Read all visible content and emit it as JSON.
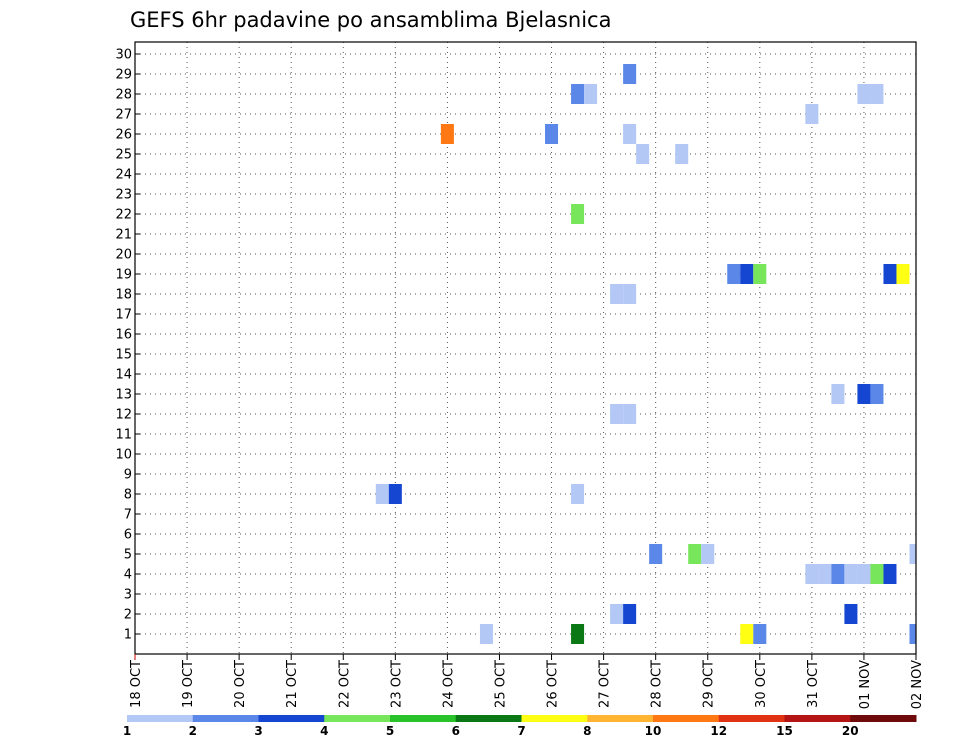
{
  "chart_data": {
    "type": "heatmap",
    "title": "GEFS 6hr padavine po ansamblima Bjelasnica",
    "xlabel": "",
    "ylabel": "",
    "y_ticks": [
      "1",
      "2",
      "3",
      "4",
      "5",
      "6",
      "7",
      "8",
      "9",
      "10",
      "11",
      "12",
      "13",
      "14",
      "15",
      "16",
      "17",
      "18",
      "19",
      "20",
      "21",
      "22",
      "23",
      "24",
      "25",
      "26",
      "27",
      "28",
      "29",
      "30"
    ],
    "ylim": [
      0,
      30
    ],
    "x_ticks": [
      "18 OCT",
      "19 OCT",
      "20 OCT",
      "21 OCT",
      "22 OCT",
      "23 OCT",
      "24 OCT",
      "25 OCT",
      "26 OCT",
      "27 OCT",
      "28 OCT",
      "29 OCT",
      "30 OCT",
      "31 OCT",
      "01 NOV",
      "02 NOV"
    ],
    "x_range_days": [
      0,
      15
    ],
    "time_step_hours": 6,
    "grid": true,
    "colorbar": {
      "placement": "bottom",
      "levels": [
        "1",
        "2",
        "3",
        "4",
        "5",
        "6",
        "7",
        "8",
        "10",
        "12",
        "15",
        "20"
      ],
      "colors": [
        "#b4c8f5",
        "#5a87e8",
        "#1446d2",
        "#78e65a",
        "#28c328",
        "#0a7814",
        "#ffff14",
        "#ffb432",
        "#ff7814",
        "#e13214",
        "#b41414",
        "#6e0a0a"
      ]
    },
    "cells": [
      {
        "member": 29,
        "time": "27 OCT 12Z",
        "level": 2
      },
      {
        "member": 28,
        "time": "26 OCT 12Z",
        "level": 2
      },
      {
        "member": 28,
        "time": "26 OCT 18Z",
        "level": 1
      },
      {
        "member": 28,
        "time": "01 NOV 00Z",
        "level": 1
      },
      {
        "member": 28,
        "time": "01 NOV 06Z",
        "level": 1
      },
      {
        "member": 27,
        "time": "31 OCT 00Z",
        "level": 1
      },
      {
        "member": 26,
        "time": "24 OCT 00Z",
        "level": 9
      },
      {
        "member": 26,
        "time": "26 OCT 00Z",
        "level": 2
      },
      {
        "member": 26,
        "time": "27 OCT 12Z",
        "level": 1
      },
      {
        "member": 25,
        "time": "27 OCT 18Z",
        "level": 1
      },
      {
        "member": 25,
        "time": "28 OCT 12Z",
        "level": 1
      },
      {
        "member": 22,
        "time": "26 OCT 12Z",
        "level": 4
      },
      {
        "member": 19,
        "time": "29 OCT 12Z",
        "level": 2
      },
      {
        "member": 19,
        "time": "29 OCT 18Z",
        "level": 3
      },
      {
        "member": 19,
        "time": "30 OCT 00Z",
        "level": 4
      },
      {
        "member": 19,
        "time": "01 NOV 12Z",
        "level": 3
      },
      {
        "member": 19,
        "time": "01 NOV 18Z",
        "level": 7
      },
      {
        "member": 18,
        "time": "27 OCT 06Z",
        "level": 1
      },
      {
        "member": 18,
        "time": "27 OCT 12Z",
        "level": 1
      },
      {
        "member": 13,
        "time": "31 OCT 12Z",
        "level": 1
      },
      {
        "member": 13,
        "time": "01 NOV 00Z",
        "level": 3
      },
      {
        "member": 13,
        "time": "01 NOV 06Z",
        "level": 2
      },
      {
        "member": 12,
        "time": "27 OCT 06Z",
        "level": 1
      },
      {
        "member": 12,
        "time": "27 OCT 12Z",
        "level": 1
      },
      {
        "member": 8,
        "time": "22 OCT 18Z",
        "level": 1
      },
      {
        "member": 8,
        "time": "23 OCT 00Z",
        "level": 3
      },
      {
        "member": 8,
        "time": "26 OCT 12Z",
        "level": 1
      },
      {
        "member": 5,
        "time": "28 OCT 00Z",
        "level": 2
      },
      {
        "member": 5,
        "time": "28 OCT 18Z",
        "level": 4
      },
      {
        "member": 5,
        "time": "29 OCT 00Z",
        "level": 1
      },
      {
        "member": 5,
        "time": "02 NOV 00Z",
        "level": 1
      },
      {
        "member": 4,
        "time": "31 OCT 00Z",
        "level": 1
      },
      {
        "member": 4,
        "time": "31 OCT 06Z",
        "level": 1
      },
      {
        "member": 4,
        "time": "31 OCT 12Z",
        "level": 2
      },
      {
        "member": 4,
        "time": "31 OCT 18Z",
        "level": 1
      },
      {
        "member": 4,
        "time": "01 NOV 00Z",
        "level": 1
      },
      {
        "member": 4,
        "time": "01 NOV 06Z",
        "level": 4
      },
      {
        "member": 4,
        "time": "01 NOV 12Z",
        "level": 3
      },
      {
        "member": 2,
        "time": "27 OCT 06Z",
        "level": 1
      },
      {
        "member": 2,
        "time": "27 OCT 12Z",
        "level": 3
      },
      {
        "member": 2,
        "time": "31 OCT 18Z",
        "level": 3
      },
      {
        "member": 1,
        "time": "24 OCT 18Z",
        "level": 1
      },
      {
        "member": 1,
        "time": "26 OCT 12Z",
        "level": 6
      },
      {
        "member": 1,
        "time": "29 OCT 18Z",
        "level": 7
      },
      {
        "member": 1,
        "time": "30 OCT 00Z",
        "level": 2
      },
      {
        "member": 1,
        "time": "02 NOV 00Z",
        "level": 2
      }
    ]
  }
}
